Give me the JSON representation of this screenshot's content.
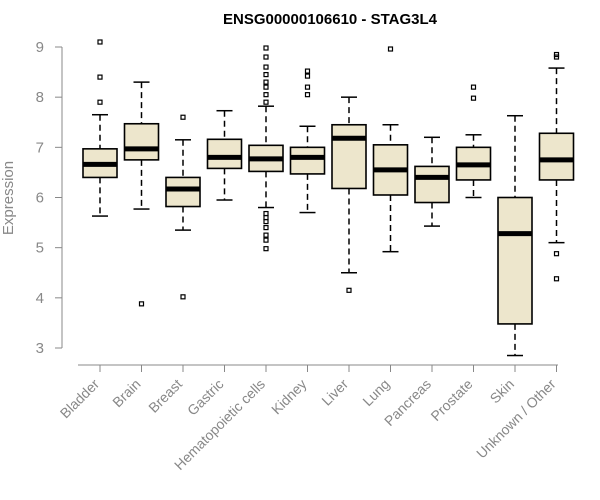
{
  "chart_data": {
    "type": "boxplot",
    "title": "ENSG00000106610 - STAG3L4",
    "xlabel": "",
    "ylabel": "Expression",
    "ylim": [
      2.9,
      9.2
    ],
    "yticks": [
      3,
      4,
      5,
      6,
      7,
      8,
      9
    ],
    "box_color": "#ede6cc",
    "series": [
      {
        "name": "Bladder",
        "whislo": 5.63,
        "q1": 6.4,
        "med": 6.66,
        "q3": 6.97,
        "whishi": 7.65,
        "fliers": [
          7.9,
          8.4,
          9.1
        ]
      },
      {
        "name": "Brain",
        "whislo": 5.77,
        "q1": 6.75,
        "med": 6.97,
        "q3": 7.47,
        "whishi": 8.3,
        "fliers": [
          3.88
        ]
      },
      {
        "name": "Breast",
        "whislo": 5.35,
        "q1": 5.82,
        "med": 6.17,
        "q3": 6.4,
        "whishi": 7.15,
        "fliers": [
          4.02,
          7.6
        ]
      },
      {
        "name": "Gastric",
        "whislo": 5.95,
        "q1": 6.58,
        "med": 6.8,
        "q3": 7.16,
        "whishi": 7.73,
        "fliers": []
      },
      {
        "name": "Hematopoietic cells",
        "whislo": 5.8,
        "q1": 6.52,
        "med": 6.77,
        "q3": 7.04,
        "whishi": 7.82,
        "fliers": [
          4.98,
          5.15,
          5.25,
          5.4,
          5.52,
          5.6,
          5.68,
          7.9,
          8.05,
          8.2,
          8.3,
          8.45,
          8.6,
          8.8,
          8.98
        ]
      },
      {
        "name": "Kidney",
        "whislo": 5.7,
        "q1": 6.47,
        "med": 6.8,
        "q3": 7.0,
        "whishi": 7.42,
        "fliers": [
          8.05,
          8.2,
          8.42,
          8.52
        ]
      },
      {
        "name": "Liver",
        "whislo": 4.5,
        "q1": 6.18,
        "med": 7.18,
        "q3": 7.45,
        "whishi": 8.0,
        "fliers": [
          4.15
        ]
      },
      {
        "name": "Lung",
        "whislo": 4.92,
        "q1": 6.05,
        "med": 6.55,
        "q3": 7.05,
        "whishi": 7.45,
        "fliers": [
          8.96
        ]
      },
      {
        "name": "Pancreas",
        "whislo": 5.43,
        "q1": 5.9,
        "med": 6.4,
        "q3": 6.62,
        "whishi": 7.2,
        "fliers": []
      },
      {
        "name": "Prostate",
        "whislo": 6.0,
        "q1": 6.35,
        "med": 6.65,
        "q3": 7.0,
        "whishi": 7.25,
        "fliers": [
          7.98,
          8.2
        ]
      },
      {
        "name": "Skin",
        "whislo": 2.85,
        "q1": 3.48,
        "med": 5.28,
        "q3": 6.0,
        "whishi": 7.63,
        "fliers": []
      },
      {
        "name": "Unknown / Other",
        "whislo": 5.1,
        "q1": 6.35,
        "med": 6.75,
        "q3": 7.28,
        "whishi": 8.58,
        "fliers": [
          4.38,
          4.88,
          8.8,
          8.85
        ]
      }
    ]
  }
}
